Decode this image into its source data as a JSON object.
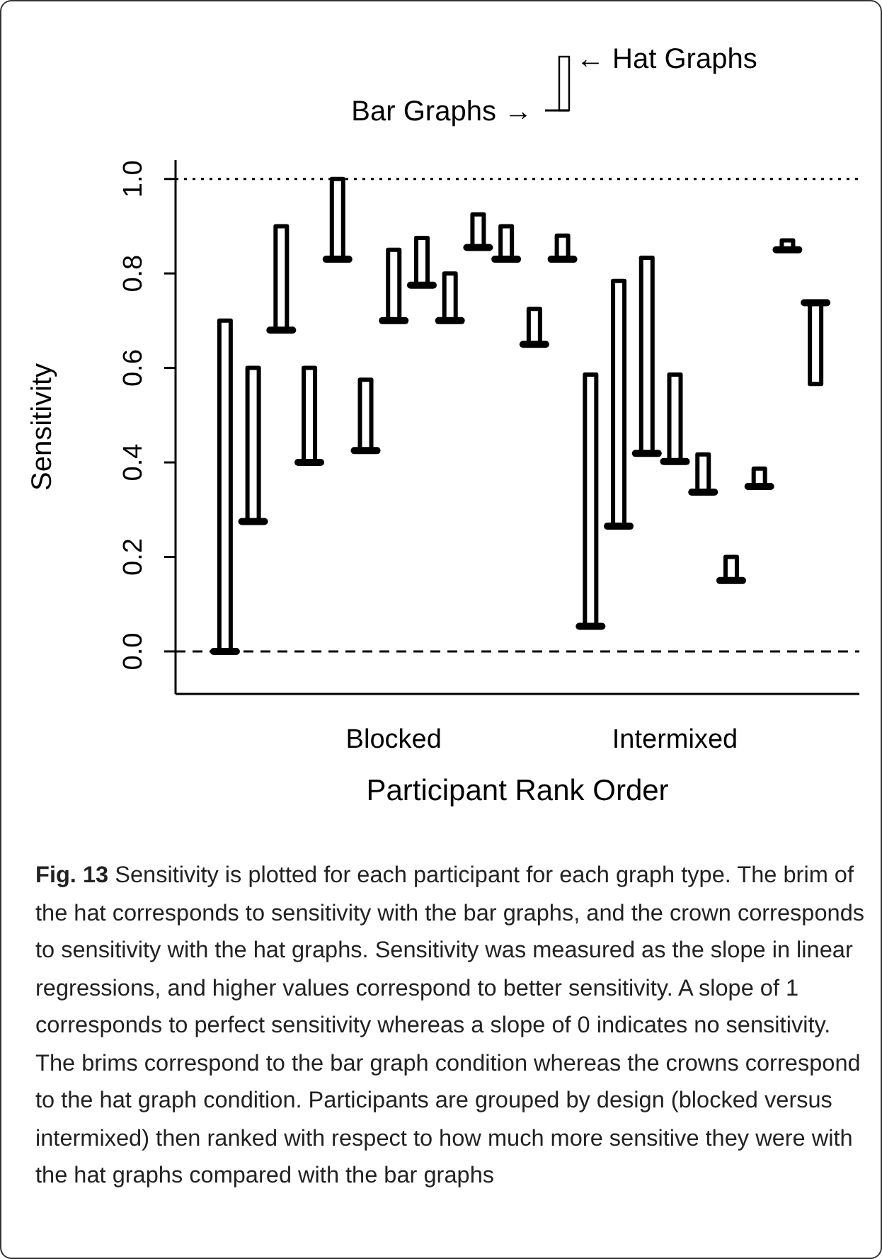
{
  "chart_data": {
    "type": "bar",
    "xlabel": "Participant Rank Order",
    "ylabel": "Sensitivity",
    "categories": [
      null,
      null,
      null,
      null,
      null,
      null,
      "Blocked",
      null,
      null,
      null,
      null,
      null,
      null,
      null,
      null,
      null,
      "Intermixed",
      null,
      null,
      null,
      null,
      null
    ],
    "base": [
      0.0,
      0.275,
      0.68,
      0.4,
      0.83,
      0.425,
      0.7,
      0.775,
      0.7,
      0.855,
      0.83,
      0.65,
      0.83,
      0.053,
      0.265,
      0.419,
      0.402,
      0.337,
      0.15,
      0.349,
      0.85,
      0.738
    ],
    "values": [
      0.7,
      0.325,
      0.22,
      0.2,
      0.17,
      0.15,
      0.15,
      0.1,
      0.1,
      0.07,
      0.07,
      0.075,
      0.05,
      0.533,
      0.519,
      0.414,
      0.184,
      0.08,
      0.05,
      0.038,
      0.02,
      -0.172
    ],
    "color": "#000000",
    "ylim": [
      -0.09,
      1.04
    ],
    "yticks": [
      {
        "value": 0,
        "label": "0.0"
      },
      {
        "value": 0.2,
        "label": "0.2"
      },
      {
        "value": 0.4,
        "label": "0.4"
      },
      {
        "value": 0.6,
        "label": "0.6"
      },
      {
        "value": 0.8,
        "label": "0.8"
      },
      {
        "value": 1,
        "label": "1.0"
      }
    ],
    "ref_lines": [
      {
        "axis": "y",
        "value": 1,
        "line_style": "dotted",
        "color": "#000000"
      },
      {
        "axis": "y",
        "value": 0,
        "line_style": "dashed",
        "color": "#000000"
      }
    ],
    "grid": false,
    "annotations": [
      "Bar Graphs →",
      "← Hat Graphs",
      "Fig. 13",
      "Sensitivity is plotted for each participant for each graph type. The brim of the hat corresponds to sensitivity with the bar graphs, and the crown corresponds to sensitivity with the hat graphs. Sensitivity was measured as the slope in linear regressions, and higher values correspond to better sensitivity. A slope of 1 corresponds to perfect sensitivity whereas a slope of 0 indicates no sensitivity. The brims correspond to the bar graph condition whereas the crowns correspond to the hat graph condition. Participants are grouped by design (blocked versus intermixed) then ranked with respect to how much more sensitive they were with the hat graphs compared with the bar graphs"
    ]
  }
}
